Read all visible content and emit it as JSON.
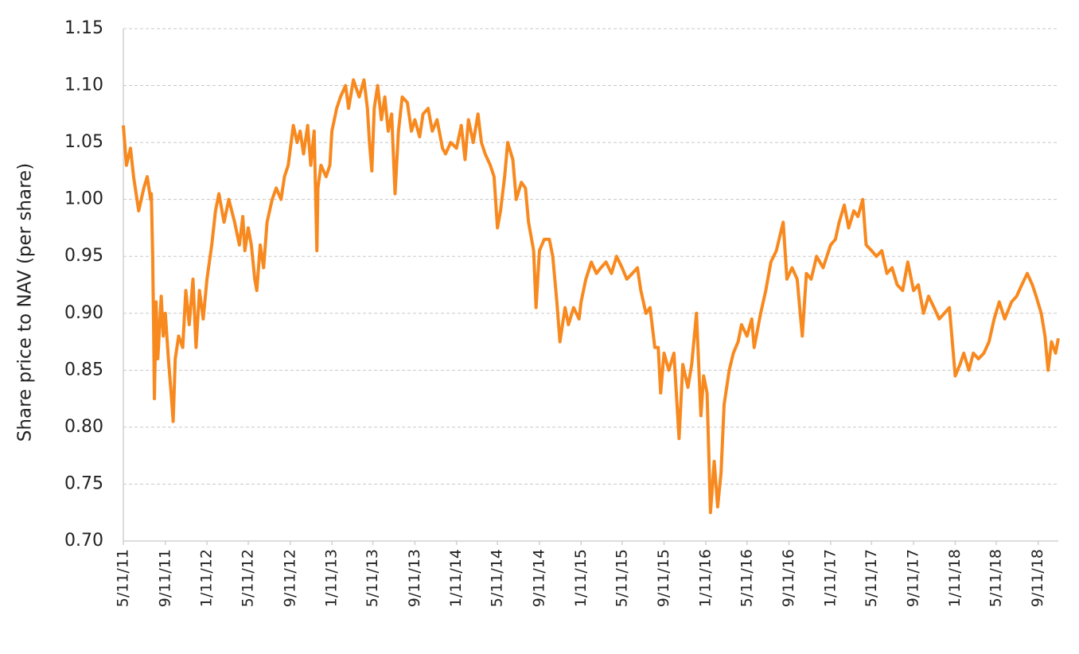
{
  "chart_data": {
    "type": "line",
    "y_label": "Share price to NAV (per share)",
    "x": [
      "2011-05-11",
      "2011-05-20",
      "2011-06-01",
      "2011-06-10",
      "2011-06-25",
      "2011-07-10",
      "2011-07-20",
      "2011-07-30",
      "2011-08-01",
      "2011-08-05",
      "2011-08-08",
      "2011-08-10",
      "2011-08-15",
      "2011-08-20",
      "2011-08-30",
      "2011-09-05",
      "2011-09-11",
      "2011-09-20",
      "2011-09-28",
      "2011-10-04",
      "2011-10-10",
      "2011-10-20",
      "2011-11-01",
      "2011-11-10",
      "2011-11-20",
      "2011-12-01",
      "2011-12-10",
      "2011-12-20",
      "2011-12-31",
      "2012-01-11",
      "2012-01-25",
      "2012-02-05",
      "2012-02-15",
      "2012-03-01",
      "2012-03-15",
      "2012-04-01",
      "2012-04-15",
      "2012-04-25",
      "2012-05-01",
      "2012-05-11",
      "2012-05-20",
      "2012-05-30",
      "2012-06-05",
      "2012-06-15",
      "2012-06-25",
      "2012-07-05",
      "2012-07-20",
      "2012-08-01",
      "2012-08-15",
      "2012-08-25",
      "2012-09-05",
      "2012-09-20",
      "2012-10-01",
      "2012-10-10",
      "2012-10-20",
      "2012-11-01",
      "2012-11-10",
      "2012-11-20",
      "2012-11-28",
      "2012-12-01",
      "2012-12-10",
      "2012-12-25",
      "2013-01-05",
      "2013-01-11",
      "2013-01-25",
      "2013-02-05",
      "2013-02-20",
      "2013-03-01",
      "2013-03-15",
      "2013-04-01",
      "2013-04-15",
      "2013-04-25",
      "2013-05-01",
      "2013-05-08",
      "2013-05-15",
      "2013-05-25",
      "2013-06-05",
      "2013-06-15",
      "2013-06-25",
      "2013-07-05",
      "2013-07-15",
      "2013-07-25",
      "2013-08-05",
      "2013-08-20",
      "2013-09-01",
      "2013-09-11",
      "2013-09-25",
      "2013-10-05",
      "2013-10-20",
      "2013-11-01",
      "2013-11-15",
      "2013-12-01",
      "2013-12-10",
      "2013-12-25",
      "2014-01-11",
      "2014-01-25",
      "2014-02-05",
      "2014-02-15",
      "2014-03-01",
      "2014-03-15",
      "2014-03-25",
      "2014-04-05",
      "2014-04-20",
      "2014-05-01",
      "2014-05-11",
      "2014-05-20",
      "2014-06-01",
      "2014-06-10",
      "2014-06-25",
      "2014-07-05",
      "2014-07-20",
      "2014-08-01",
      "2014-08-10",
      "2014-08-25",
      "2014-09-01",
      "2014-09-11",
      "2014-09-25",
      "2014-10-10",
      "2014-10-20",
      "2014-11-01",
      "2014-11-10",
      "2014-11-25",
      "2014-12-05",
      "2014-12-20",
      "2015-01-05",
      "2015-01-11",
      "2015-01-25",
      "2015-02-10",
      "2015-02-25",
      "2015-03-10",
      "2015-03-25",
      "2015-04-10",
      "2015-04-25",
      "2015-05-11",
      "2015-05-25",
      "2015-06-10",
      "2015-06-25",
      "2015-07-05",
      "2015-07-20",
      "2015-08-01",
      "2015-08-15",
      "2015-08-25",
      "2015-09-01",
      "2015-09-11",
      "2015-09-25",
      "2015-10-10",
      "2015-10-25",
      "2015-11-05",
      "2015-11-20",
      "2015-12-01",
      "2015-12-15",
      "2015-12-28",
      "2016-01-05",
      "2016-01-15",
      "2016-01-25",
      "2016-02-05",
      "2016-02-15",
      "2016-02-25",
      "2016-03-05",
      "2016-03-20",
      "2016-04-01",
      "2016-04-15",
      "2016-04-25",
      "2016-05-11",
      "2016-05-25",
      "2016-06-01",
      "2016-06-20",
      "2016-07-05",
      "2016-07-20",
      "2016-08-05",
      "2016-08-25",
      "2016-09-05",
      "2016-09-20",
      "2016-10-05",
      "2016-10-20",
      "2016-11-01",
      "2016-11-15",
      "2016-12-01",
      "2016-12-20",
      "2017-01-11",
      "2017-01-25",
      "2017-02-05",
      "2017-02-20",
      "2017-03-05",
      "2017-03-20",
      "2017-04-01",
      "2017-04-15",
      "2017-04-25",
      "2017-05-11",
      "2017-05-25",
      "2017-06-10",
      "2017-06-25",
      "2017-07-10",
      "2017-07-25",
      "2017-08-10",
      "2017-08-25",
      "2017-09-11",
      "2017-09-25",
      "2017-10-10",
      "2017-10-25",
      "2017-11-10",
      "2017-11-25",
      "2017-12-10",
      "2017-12-25",
      "2018-01-11",
      "2018-01-25",
      "2018-02-05",
      "2018-02-20",
      "2018-03-05",
      "2018-03-20",
      "2018-04-05",
      "2018-04-20",
      "2018-05-05",
      "2018-05-20",
      "2018-06-05",
      "2018-06-25",
      "2018-07-10",
      "2018-07-25",
      "2018-08-10",
      "2018-08-25",
      "2018-09-05",
      "2018-09-20",
      "2018-10-01",
      "2018-10-10",
      "2018-10-20",
      "2018-11-01",
      "2018-11-09"
    ],
    "series": [
      {
        "color": "#f7891f",
        "values": [
          1.065,
          1.03,
          1.045,
          1.02,
          0.99,
          1.01,
          1.02,
          1.0,
          1.005,
          0.95,
          0.88,
          0.825,
          0.91,
          0.86,
          0.915,
          0.88,
          0.9,
          0.86,
          0.83,
          0.805,
          0.86,
          0.88,
          0.87,
          0.92,
          0.89,
          0.93,
          0.87,
          0.92,
          0.895,
          0.93,
          0.96,
          0.99,
          1.005,
          0.98,
          1.0,
          0.98,
          0.96,
          0.985,
          0.955,
          0.975,
          0.96,
          0.93,
          0.92,
          0.96,
          0.94,
          0.98,
          1.0,
          1.01,
          1.0,
          1.02,
          1.03,
          1.065,
          1.05,
          1.06,
          1.04,
          1.065,
          1.03,
          1.06,
          0.955,
          1.01,
          1.03,
          1.02,
          1.03,
          1.06,
          1.08,
          1.09,
          1.1,
          1.08,
          1.105,
          1.09,
          1.105,
          1.08,
          1.05,
          1.025,
          1.08,
          1.1,
          1.07,
          1.09,
          1.06,
          1.075,
          1.005,
          1.06,
          1.09,
          1.085,
          1.06,
          1.07,
          1.055,
          1.075,
          1.08,
          1.06,
          1.07,
          1.045,
          1.04,
          1.05,
          1.045,
          1.065,
          1.035,
          1.07,
          1.05,
          1.075,
          1.05,
          1.04,
          1.03,
          1.02,
          0.975,
          0.99,
          1.02,
          1.05,
          1.035,
          1.0,
          1.015,
          1.01,
          0.98,
          0.955,
          0.905,
          0.955,
          0.965,
          0.965,
          0.95,
          0.91,
          0.875,
          0.905,
          0.89,
          0.905,
          0.895,
          0.91,
          0.93,
          0.945,
          0.935,
          0.94,
          0.945,
          0.935,
          0.95,
          0.94,
          0.93,
          0.935,
          0.94,
          0.92,
          0.9,
          0.905,
          0.87,
          0.87,
          0.83,
          0.865,
          0.85,
          0.865,
          0.79,
          0.855,
          0.835,
          0.855,
          0.9,
          0.81,
          0.845,
          0.83,
          0.725,
          0.77,
          0.73,
          0.76,
          0.82,
          0.85,
          0.865,
          0.875,
          0.89,
          0.88,
          0.895,
          0.87,
          0.9,
          0.92,
          0.945,
          0.955,
          0.98,
          0.93,
          0.94,
          0.93,
          0.88,
          0.935,
          0.93,
          0.95,
          0.94,
          0.96,
          0.965,
          0.98,
          0.995,
          0.975,
          0.99,
          0.985,
          1.0,
          0.96,
          0.955,
          0.95,
          0.955,
          0.935,
          0.94,
          0.925,
          0.92,
          0.945,
          0.92,
          0.925,
          0.9,
          0.915,
          0.905,
          0.895,
          0.9,
          0.905,
          0.845,
          0.855,
          0.865,
          0.85,
          0.865,
          0.86,
          0.865,
          0.875,
          0.895,
          0.91,
          0.895,
          0.91,
          0.915,
          0.925,
          0.935,
          0.925,
          0.915,
          0.9,
          0.88,
          0.85,
          0.875,
          0.865,
          0.878
        ]
      }
    ],
    "xlim": [
      "2011-05-11",
      "2018-11-09"
    ],
    "xticks": [
      {
        "value": "2011-05-11",
        "label": "5/11/11"
      },
      {
        "value": "2011-09-11",
        "label": "9/11/11"
      },
      {
        "value": "2012-01-11",
        "label": "1/11/12"
      },
      {
        "value": "2012-05-11",
        "label": "5/11/12"
      },
      {
        "value": "2012-09-11",
        "label": "9/11/12"
      },
      {
        "value": "2013-01-11",
        "label": "1/11/13"
      },
      {
        "value": "2013-05-11",
        "label": "5/11/13"
      },
      {
        "value": "2013-09-11",
        "label": "9/11/13"
      },
      {
        "value": "2014-01-11",
        "label": "1/11/14"
      },
      {
        "value": "2014-05-11",
        "label": "5/11/14"
      },
      {
        "value": "2014-09-11",
        "label": "9/11/14"
      },
      {
        "value": "2015-01-11",
        "label": "1/11/15"
      },
      {
        "value": "2015-05-11",
        "label": "5/11/15"
      },
      {
        "value": "2015-09-11",
        "label": "9/11/15"
      },
      {
        "value": "2016-01-11",
        "label": "1/11/16"
      },
      {
        "value": "2016-05-11",
        "label": "5/11/16"
      },
      {
        "value": "2016-09-11",
        "label": "9/11/16"
      },
      {
        "value": "2017-01-11",
        "label": "1/11/17"
      },
      {
        "value": "2017-05-11",
        "label": "5/11/17"
      },
      {
        "value": "2017-09-11",
        "label": "9/11/17"
      },
      {
        "value": "2018-01-11",
        "label": "1/11/18"
      },
      {
        "value": "2018-05-11",
        "label": "5/11/18"
      },
      {
        "value": "2018-09-11",
        "label": "9/11/18"
      }
    ],
    "ylim": [
      0.7,
      1.15
    ],
    "yticks": [
      {
        "value": 0.7,
        "label": "0.70"
      },
      0.75,
      {
        "value": 0.8,
        "label": "0.80"
      },
      0.85,
      {
        "value": 0.9,
        "label": "0.90"
      },
      0.95,
      {
        "value": 1.0,
        "label": "1.00"
      },
      1.05,
      {
        "value": 1.1,
        "label": "1.10"
      },
      1.15
    ],
    "grid": true
  }
}
